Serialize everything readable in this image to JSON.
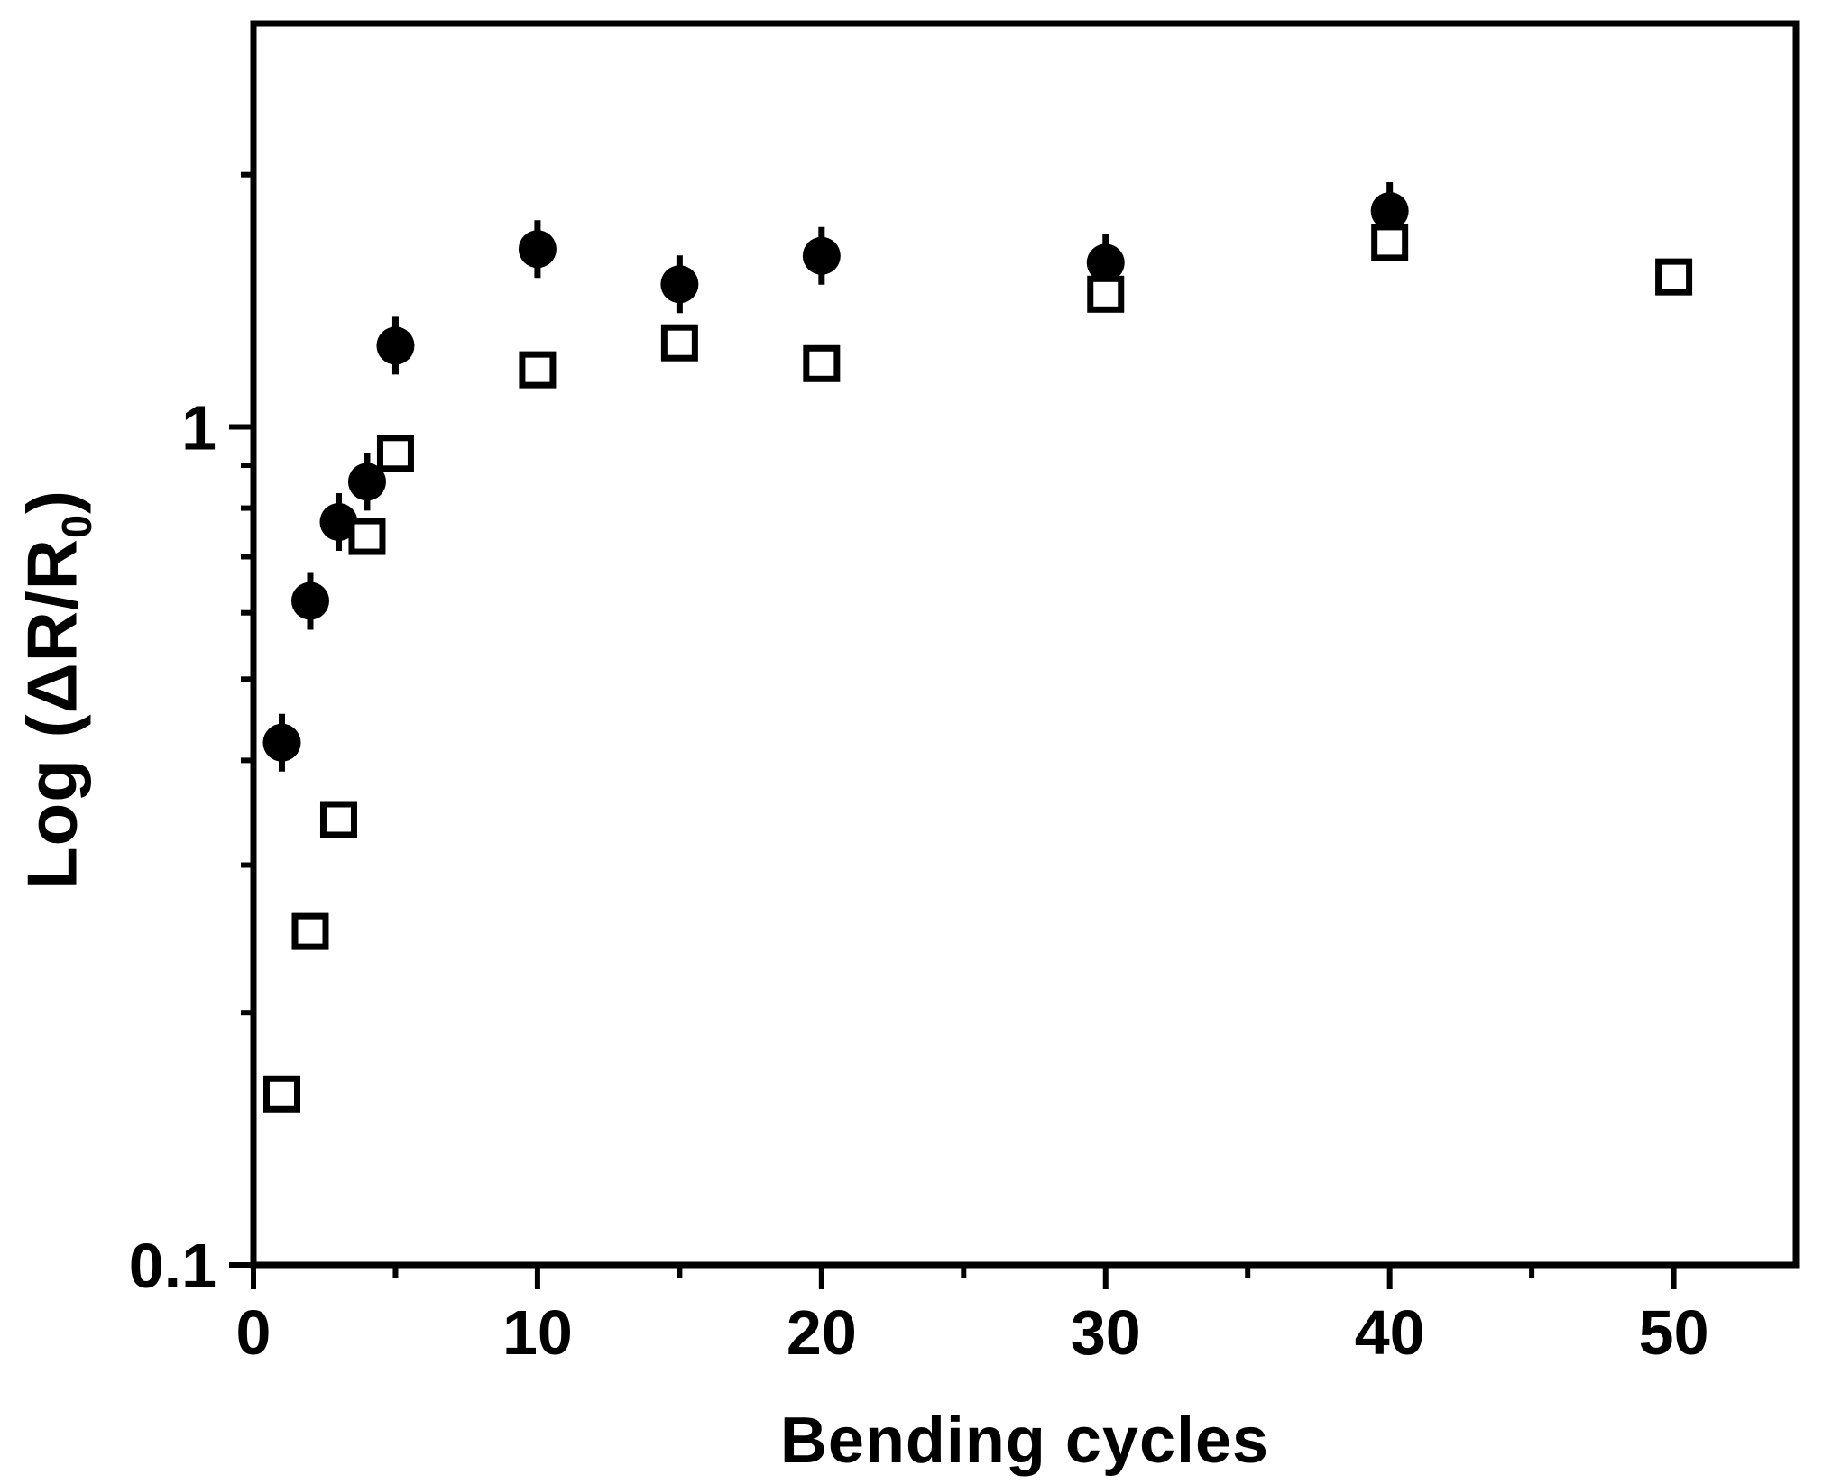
{
  "chart_data": {
    "type": "scatter",
    "title": "",
    "xlabel": "Bending cycles",
    "ylabel": "Log (ΔR/R₀)",
    "ylabel_parts": {
      "prefix": "Log (ΔR/R",
      "sub": "0",
      "suffix": ")"
    },
    "grid": false,
    "legend": "none",
    "background_color": "#ffffff",
    "axis_color": "#000000",
    "x_axis": {
      "scale": "linear",
      "min": 0,
      "max": 54.3,
      "major_ticks": [
        0,
        10,
        20,
        30,
        40,
        50
      ],
      "tick_labels": [
        "0",
        "10",
        "20",
        "30",
        "40",
        "50"
      ],
      "minor_ticks": [
        5,
        15,
        25,
        35,
        45
      ]
    },
    "y_axis": {
      "scale": "log",
      "min": 0.1,
      "max": 3.03,
      "major_ticks": [
        0.1,
        1
      ],
      "tick_labels": [
        "0.1",
        "1"
      ],
      "minor_ticks": [
        0.2,
        0.3,
        0.4,
        0.5,
        0.6,
        0.7,
        0.8,
        0.9,
        2
      ]
    },
    "series": [
      {
        "name": "filled-circle-series",
        "marker": "circle",
        "color": "#000000",
        "points": [
          {
            "x": 1,
            "y": 0.42
          },
          {
            "x": 2,
            "y": 0.62
          },
          {
            "x": 3,
            "y": 0.77
          },
          {
            "x": 4,
            "y": 0.86
          },
          {
            "x": 5,
            "y": 1.25
          },
          {
            "x": 10,
            "y": 1.63
          },
          {
            "x": 15,
            "y": 1.48
          },
          {
            "x": 20,
            "y": 1.6
          },
          {
            "x": 30,
            "y": 1.57
          },
          {
            "x": 40,
            "y": 1.81
          }
        ]
      },
      {
        "name": "open-square-series",
        "marker": "square",
        "color": "#000000",
        "fill": "#ffffff",
        "points": [
          {
            "x": 1,
            "y": 0.16
          },
          {
            "x": 2,
            "y": 0.25
          },
          {
            "x": 3,
            "y": 0.34
          },
          {
            "x": 4,
            "y": 0.74
          },
          {
            "x": 5,
            "y": 0.93
          },
          {
            "x": 10,
            "y": 1.17
          },
          {
            "x": 15,
            "y": 1.26
          },
          {
            "x": 20,
            "y": 1.19
          },
          {
            "x": 30,
            "y": 1.44
          },
          {
            "x": 40,
            "y": 1.66
          },
          {
            "x": 50,
            "y": 1.51
          }
        ]
      }
    ]
  }
}
